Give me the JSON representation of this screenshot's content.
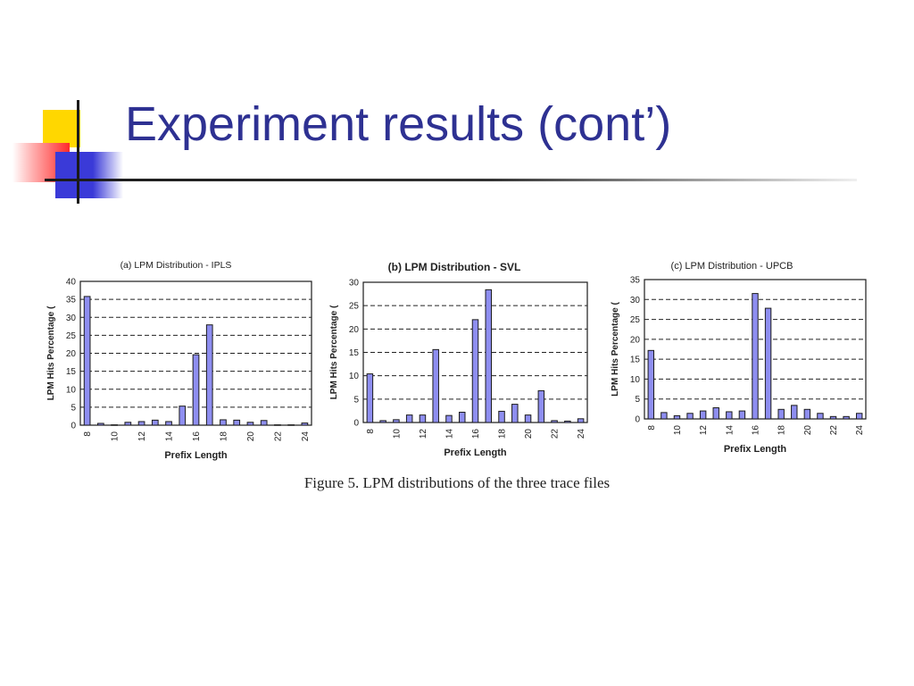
{
  "slide": {
    "title": "Experiment results (cont’)",
    "caption": "Figure 5. LPM distributions of the three trace files"
  },
  "colors": {
    "title": "#2e3192",
    "bar_fill": "#8e8ef0",
    "bar_stroke": "#1c1c1c",
    "grid": "#222222",
    "accent_yellow": "#ffd700",
    "accent_red": "#ff2a2a",
    "accent_blue": "#3a3ad8"
  },
  "chart_data": [
    {
      "type": "bar",
      "title": "(a) LPM Distribution - IPLS",
      "xlabel": "Prefix Length",
      "ylabel": "LPM Hits Percentage (",
      "categories": [
        "8",
        "9",
        "10",
        "11",
        "12",
        "13",
        "14",
        "15",
        "16",
        "17",
        "18",
        "19",
        "20",
        "21",
        "22",
        "23",
        "24"
      ],
      "values": [
        35.8,
        0.5,
        0.1,
        0.8,
        1.0,
        1.4,
        1.0,
        5.3,
        19.6,
        27.9,
        1.5,
        1.4,
        0.8,
        1.3,
        0.1,
        0.1,
        0.6
      ],
      "xtick_labels": [
        "8",
        "10",
        "12",
        "14",
        "16",
        "18",
        "20",
        "22",
        "24"
      ],
      "ylim": [
        0,
        40
      ],
      "yticks": [
        0,
        5,
        10,
        15,
        20,
        25,
        30,
        35,
        40
      ],
      "grid": "dashed horizontal"
    },
    {
      "type": "bar",
      "title": "(b) LPM Distribution - SVL",
      "xlabel": "Prefix Length",
      "ylabel": "LPM Hits Percentage (",
      "categories": [
        "8",
        "9",
        "10",
        "11",
        "12",
        "13",
        "14",
        "15",
        "16",
        "17",
        "18",
        "19",
        "20",
        "21",
        "22",
        "23",
        "24"
      ],
      "values": [
        10.4,
        0.4,
        0.6,
        1.6,
        1.6,
        15.6,
        1.5,
        2.2,
        22.0,
        28.4,
        2.4,
        3.9,
        1.6,
        6.8,
        0.4,
        0.3,
        0.8
      ],
      "xtick_labels": [
        "8",
        "10",
        "12",
        "14",
        "16",
        "18",
        "20",
        "22",
        "24"
      ],
      "ylim": [
        0,
        30
      ],
      "yticks": [
        0,
        5,
        10,
        15,
        20,
        25,
        30
      ],
      "grid": "dashed horizontal"
    },
    {
      "type": "bar",
      "title": "(c)  LPM Distribution - UPCB",
      "xlabel": "Prefix Length",
      "ylabel": "LPM Hits Percentage (",
      "categories": [
        "8",
        "9",
        "10",
        "11",
        "12",
        "13",
        "14",
        "15",
        "16",
        "17",
        "18",
        "19",
        "20",
        "21",
        "22",
        "23",
        "24"
      ],
      "values": [
        17.2,
        1.6,
        0.8,
        1.4,
        2.0,
        2.8,
        1.8,
        2.0,
        31.5,
        27.8,
        2.4,
        3.4,
        2.4,
        1.4,
        0.6,
        0.6,
        1.4
      ],
      "xtick_labels": [
        "8",
        "10",
        "12",
        "14",
        "16",
        "18",
        "20",
        "22",
        "24"
      ],
      "ylim": [
        0,
        35
      ],
      "yticks": [
        0,
        5,
        10,
        15,
        20,
        25,
        30,
        35
      ],
      "grid": "dashed horizontal"
    }
  ]
}
